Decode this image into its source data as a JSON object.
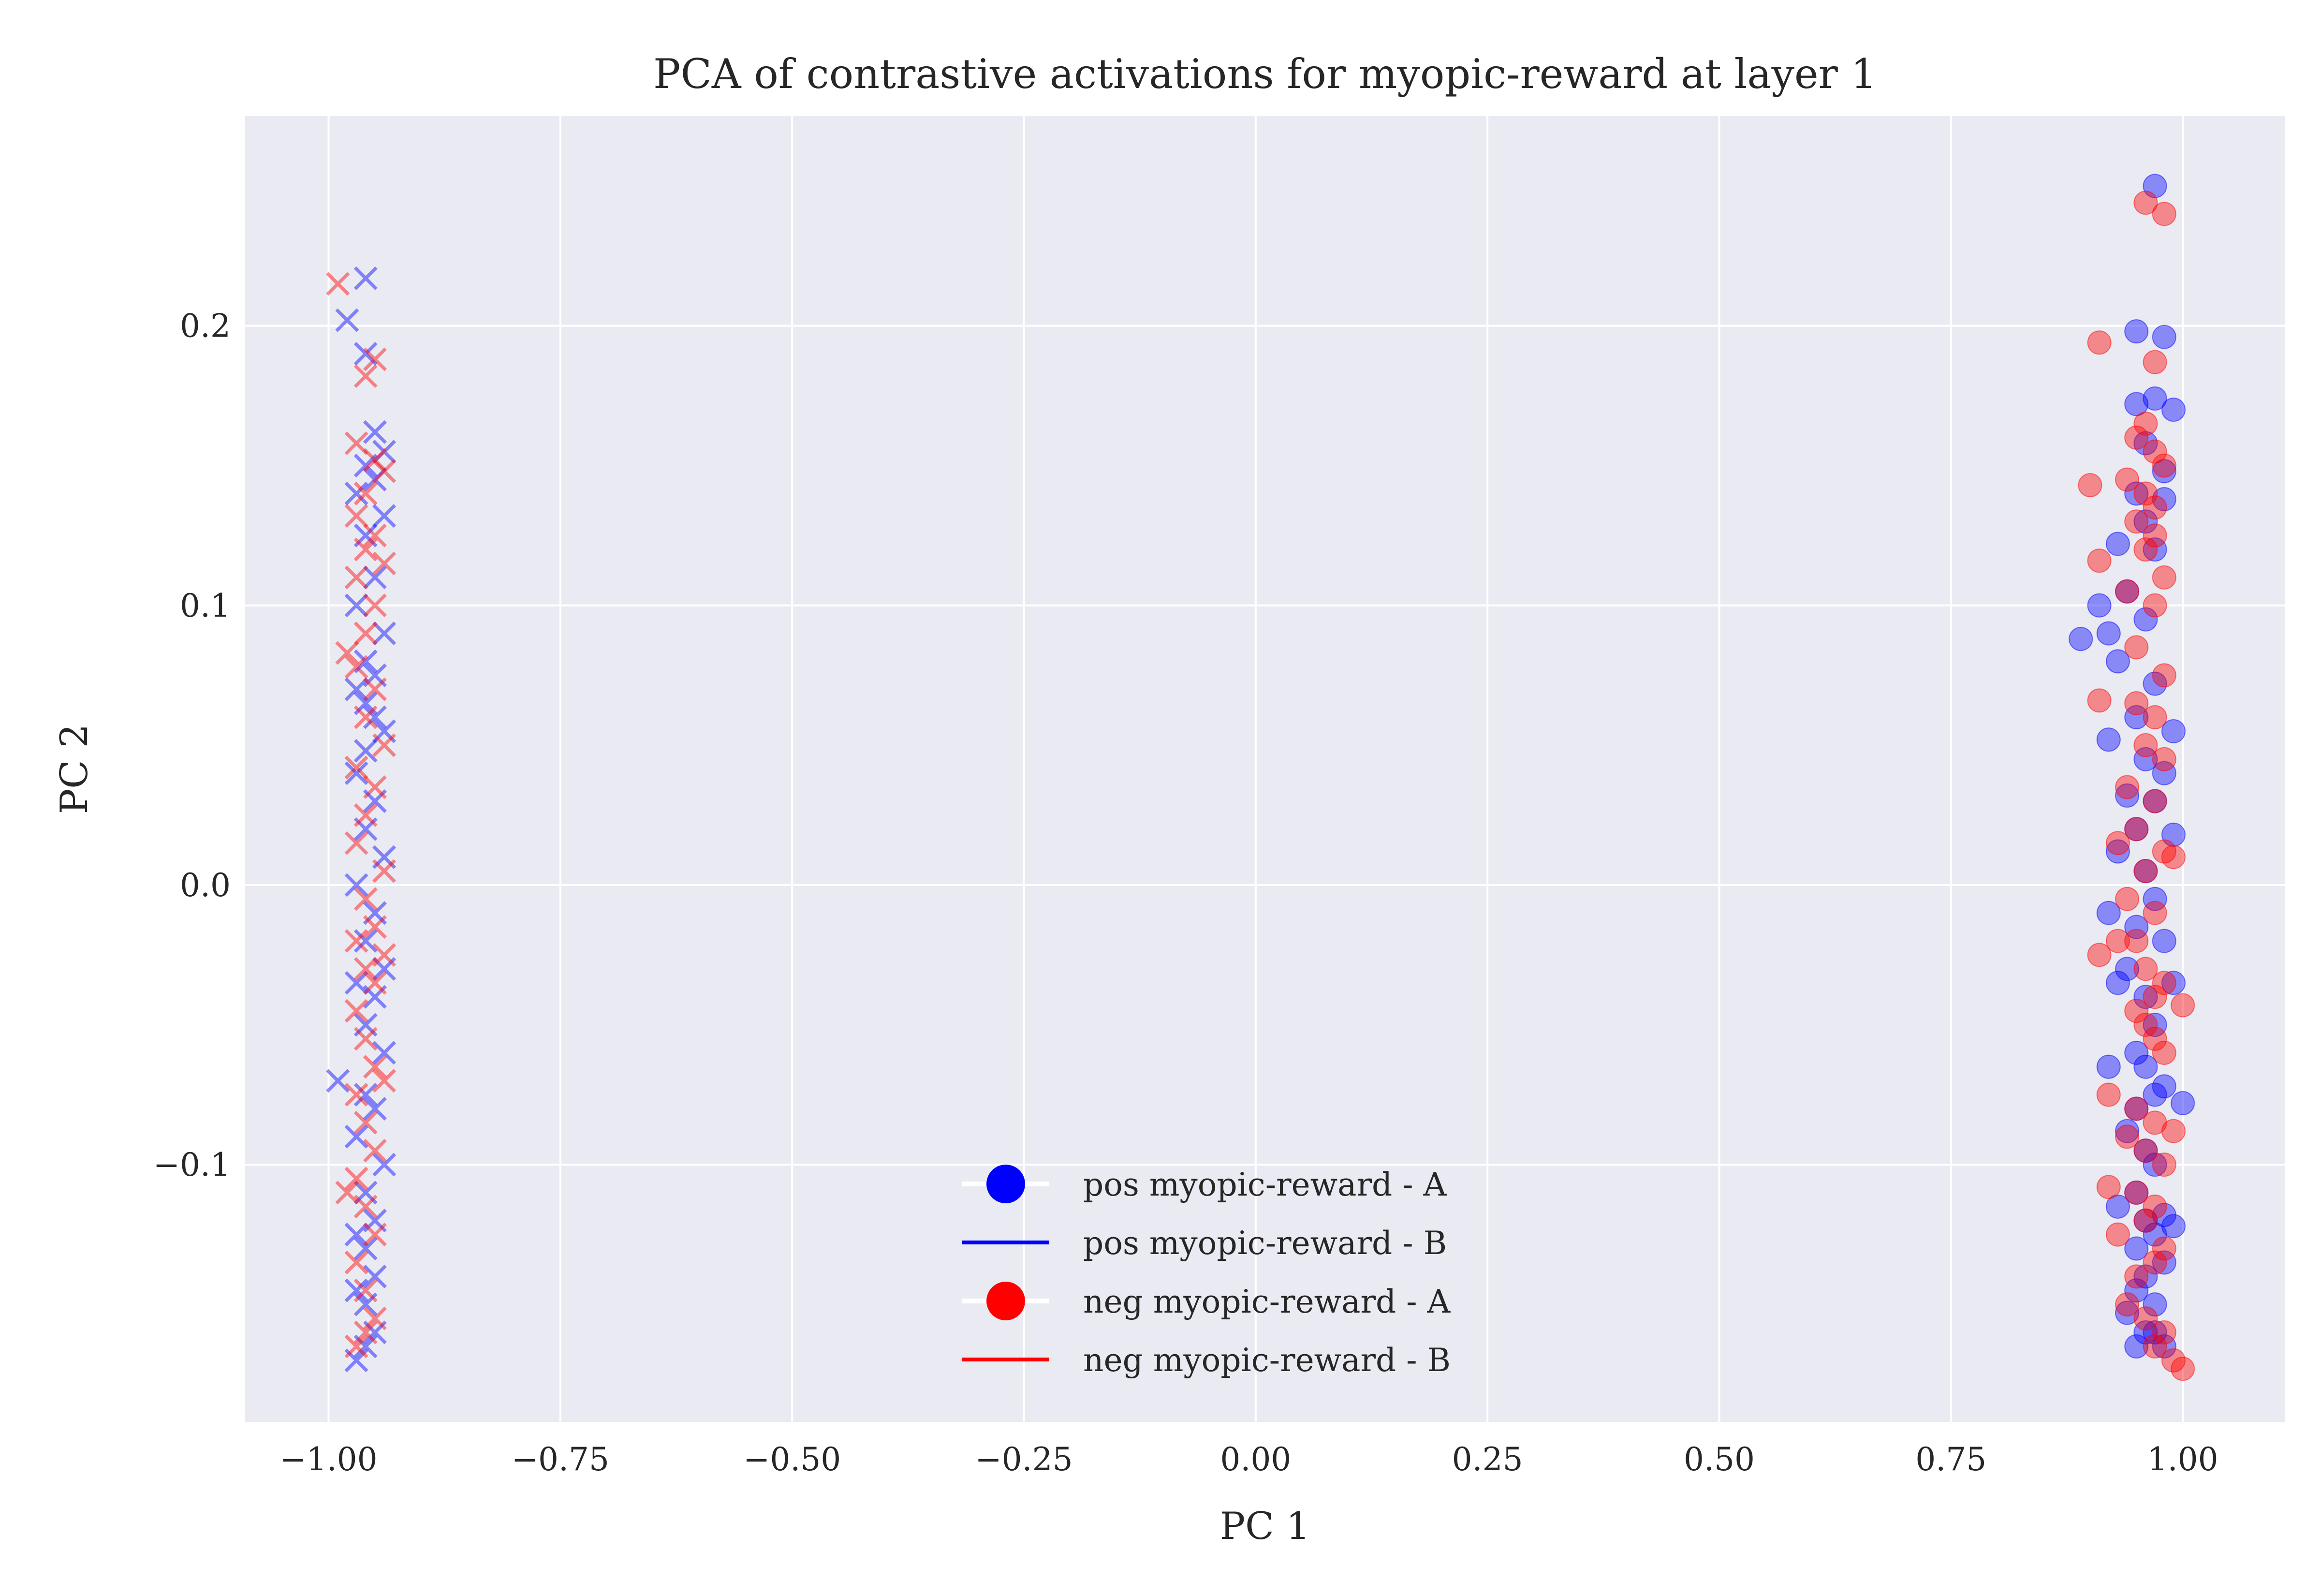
{
  "chart_data": {
    "type": "scatter",
    "title": "PCA of contrastive activations for myopic-reward at layer 1",
    "xlabel": "PC 1",
    "ylabel": "PC 2",
    "xlim": [
      -1.09,
      1.11
    ],
    "ylim": [
      -0.192,
      0.275
    ],
    "xticks": [
      -1.0,
      -0.75,
      -0.5,
      -0.25,
      0.0,
      0.25,
      0.5,
      0.75,
      1.0
    ],
    "xtick_labels": [
      "−1.00",
      "−0.75",
      "−0.50",
      "−0.25",
      "0.00",
      "0.25",
      "0.50",
      "0.75",
      "1.00"
    ],
    "yticks": [
      -0.1,
      0.0,
      0.1,
      0.2
    ],
    "ytick_labels": [
      "−0.1",
      "0.0",
      "0.1",
      "0.2"
    ],
    "grid": true,
    "legend_position": "lower center",
    "background": "#eaeaf2",
    "series": [
      {
        "name": "pos myopic-reward - A",
        "marker": "circle",
        "color": "#0000ff",
        "x": [
          0.97,
          0.95,
          0.98,
          0.95,
          0.97,
          0.99,
          0.96,
          0.98,
          0.89,
          0.93,
          0.95,
          0.91,
          0.96,
          0.98,
          0.92,
          0.97,
          0.94,
          0.96,
          0.93,
          0.95,
          0.97,
          0.99,
          0.92,
          0.96,
          0.98,
          0.94,
          0.97,
          0.95,
          0.93,
          0.99,
          0.96,
          0.92,
          0.97,
          0.95,
          0.98,
          0.94,
          0.96,
          0.93,
          0.97,
          0.95,
          0.99,
          0.96,
          0.92,
          0.97,
          0.95,
          0.98,
          1.0,
          0.94,
          0.96,
          0.97,
          0.95,
          0.93,
          0.98,
          0.96,
          0.97,
          0.95,
          0.99,
          0.96,
          0.98,
          0.95,
          0.97,
          0.94,
          0.96,
          0.98,
          0.95,
          0.97
        ],
        "y": [
          0.25,
          0.198,
          0.196,
          0.172,
          0.174,
          0.17,
          0.158,
          0.148,
          0.088,
          0.122,
          0.14,
          0.1,
          0.13,
          0.138,
          0.09,
          0.12,
          0.105,
          0.095,
          0.08,
          0.06,
          0.072,
          0.055,
          0.052,
          0.045,
          0.04,
          0.032,
          0.03,
          0.02,
          0.012,
          0.018,
          0.005,
          -0.01,
          -0.005,
          -0.015,
          -0.02,
          -0.03,
          -0.04,
          -0.035,
          -0.05,
          -0.06,
          -0.035,
          -0.065,
          -0.065,
          -0.075,
          -0.08,
          -0.072,
          -0.078,
          -0.088,
          -0.095,
          -0.1,
          -0.11,
          -0.115,
          -0.118,
          -0.12,
          -0.125,
          -0.13,
          -0.122,
          -0.14,
          -0.135,
          -0.145,
          -0.15,
          -0.153,
          -0.16,
          -0.165,
          -0.165,
          -0.16
        ]
      },
      {
        "name": "pos myopic-reward - B",
        "marker": "x",
        "color": "#0000ff",
        "x": [
          -0.96,
          -0.98,
          -0.96,
          -0.95,
          -0.94,
          -0.96,
          -0.95,
          -0.97,
          -0.94,
          -0.96,
          -0.95,
          -0.97,
          -0.94,
          -0.96,
          -0.95,
          -0.97,
          -0.96,
          -0.95,
          -0.94,
          -0.96,
          -0.97,
          -0.95,
          -0.96,
          -0.94,
          -0.97,
          -0.95,
          -0.96,
          -0.94,
          -0.97,
          -0.95,
          -0.96,
          -0.94,
          -0.99,
          -0.96,
          -0.95,
          -0.97,
          -0.94,
          -0.96,
          -0.95,
          -0.97,
          -0.96,
          -0.95,
          -0.97,
          -0.96,
          -0.95,
          -0.96,
          -0.97
        ],
        "y": [
          0.217,
          0.202,
          0.19,
          0.162,
          0.155,
          0.15,
          0.145,
          0.14,
          0.132,
          0.125,
          0.11,
          0.1,
          0.09,
          0.08,
          0.075,
          0.07,
          0.065,
          0.06,
          0.055,
          0.048,
          0.04,
          0.03,
          0.02,
          0.01,
          0.0,
          -0.01,
          -0.02,
          -0.03,
          -0.035,
          -0.04,
          -0.05,
          -0.06,
          -0.07,
          -0.075,
          -0.08,
          -0.09,
          -0.1,
          -0.11,
          -0.12,
          -0.125,
          -0.13,
          -0.14,
          -0.145,
          -0.15,
          -0.16,
          -0.165,
          -0.17
        ]
      },
      {
        "name": "neg myopic-reward - A",
        "marker": "circle",
        "color": "#ff0000",
        "x": [
          0.96,
          0.98,
          0.91,
          0.97,
          0.96,
          0.95,
          0.97,
          0.98,
          0.94,
          0.96,
          0.97,
          0.9,
          0.95,
          0.97,
          0.91,
          0.96,
          0.98,
          0.94,
          0.97,
          0.95,
          0.98,
          0.91,
          0.95,
          0.97,
          0.96,
          0.98,
          0.94,
          0.97,
          0.95,
          0.93,
          0.98,
          0.96,
          0.99,
          0.94,
          0.97,
          0.95,
          0.91,
          0.96,
          0.98,
          0.93,
          0.97,
          0.95,
          0.96,
          0.98,
          0.97,
          0.92,
          0.95,
          0.97,
          0.99,
          0.96,
          0.94,
          1.0,
          0.98,
          0.92,
          0.95,
          0.97,
          0.96,
          0.93,
          0.98,
          0.97,
          0.95,
          0.94,
          0.96,
          0.98,
          0.97,
          0.99,
          1.0
        ],
        "y": [
          0.244,
          0.24,
          0.194,
          0.187,
          0.165,
          0.16,
          0.155,
          0.15,
          0.145,
          0.14,
          0.135,
          0.143,
          0.13,
          0.125,
          0.116,
          0.12,
          0.11,
          0.105,
          0.1,
          0.085,
          0.075,
          0.066,
          0.065,
          0.06,
          0.05,
          0.045,
          0.035,
          0.03,
          0.02,
          0.015,
          0.012,
          0.005,
          0.01,
          -0.005,
          -0.01,
          -0.02,
          -0.025,
          -0.03,
          -0.035,
          -0.02,
          -0.04,
          -0.045,
          -0.05,
          -0.06,
          -0.055,
          -0.075,
          -0.08,
          -0.085,
          -0.088,
          -0.095,
          -0.09,
          -0.043,
          -0.1,
          -0.108,
          -0.11,
          -0.115,
          -0.12,
          -0.125,
          -0.13,
          -0.135,
          -0.14,
          -0.15,
          -0.155,
          -0.16,
          -0.165,
          -0.17,
          -0.173
        ]
      },
      {
        "name": "neg myopic-reward - B",
        "marker": "x",
        "color": "#ff0000",
        "x": [
          -0.99,
          -0.95,
          -0.96,
          -0.97,
          -0.95,
          -0.94,
          -0.96,
          -0.97,
          -0.95,
          -0.96,
          -0.94,
          -0.97,
          -0.95,
          -0.96,
          -0.98,
          -0.97,
          -0.95,
          -0.96,
          -0.94,
          -0.97,
          -0.95,
          -0.96,
          -0.97,
          -0.94,
          -0.96,
          -0.95,
          -0.97,
          -0.94,
          -0.96,
          -0.95,
          -0.97,
          -0.96,
          -0.95,
          -0.94,
          -0.97,
          -0.96,
          -0.95,
          -0.97,
          -0.98,
          -0.96,
          -0.95,
          -0.97,
          -0.96,
          -0.95,
          -0.96,
          -0.97
        ],
        "y": [
          0.215,
          0.188,
          0.182,
          0.158,
          0.152,
          0.148,
          0.14,
          0.132,
          0.125,
          0.12,
          0.115,
          0.11,
          0.1,
          0.09,
          0.083,
          0.078,
          0.07,
          0.06,
          0.05,
          0.042,
          0.035,
          0.025,
          0.015,
          0.005,
          -0.005,
          -0.015,
          -0.02,
          -0.025,
          -0.03,
          -0.035,
          -0.045,
          -0.055,
          -0.065,
          -0.07,
          -0.075,
          -0.085,
          -0.095,
          -0.105,
          -0.11,
          -0.115,
          -0.125,
          -0.135,
          -0.145,
          -0.155,
          -0.16,
          -0.165
        ]
      }
    ],
    "legend": [
      {
        "label": "pos myopic-reward - A",
        "style": "marker",
        "color": "#0000ff"
      },
      {
        "label": "pos myopic-reward - B",
        "style": "line",
        "color": "#0000ff"
      },
      {
        "label": "neg myopic-reward - A",
        "style": "marker",
        "color": "#ff0000"
      },
      {
        "label": "neg myopic-reward - B",
        "style": "line",
        "color": "#ff0000"
      }
    ]
  }
}
